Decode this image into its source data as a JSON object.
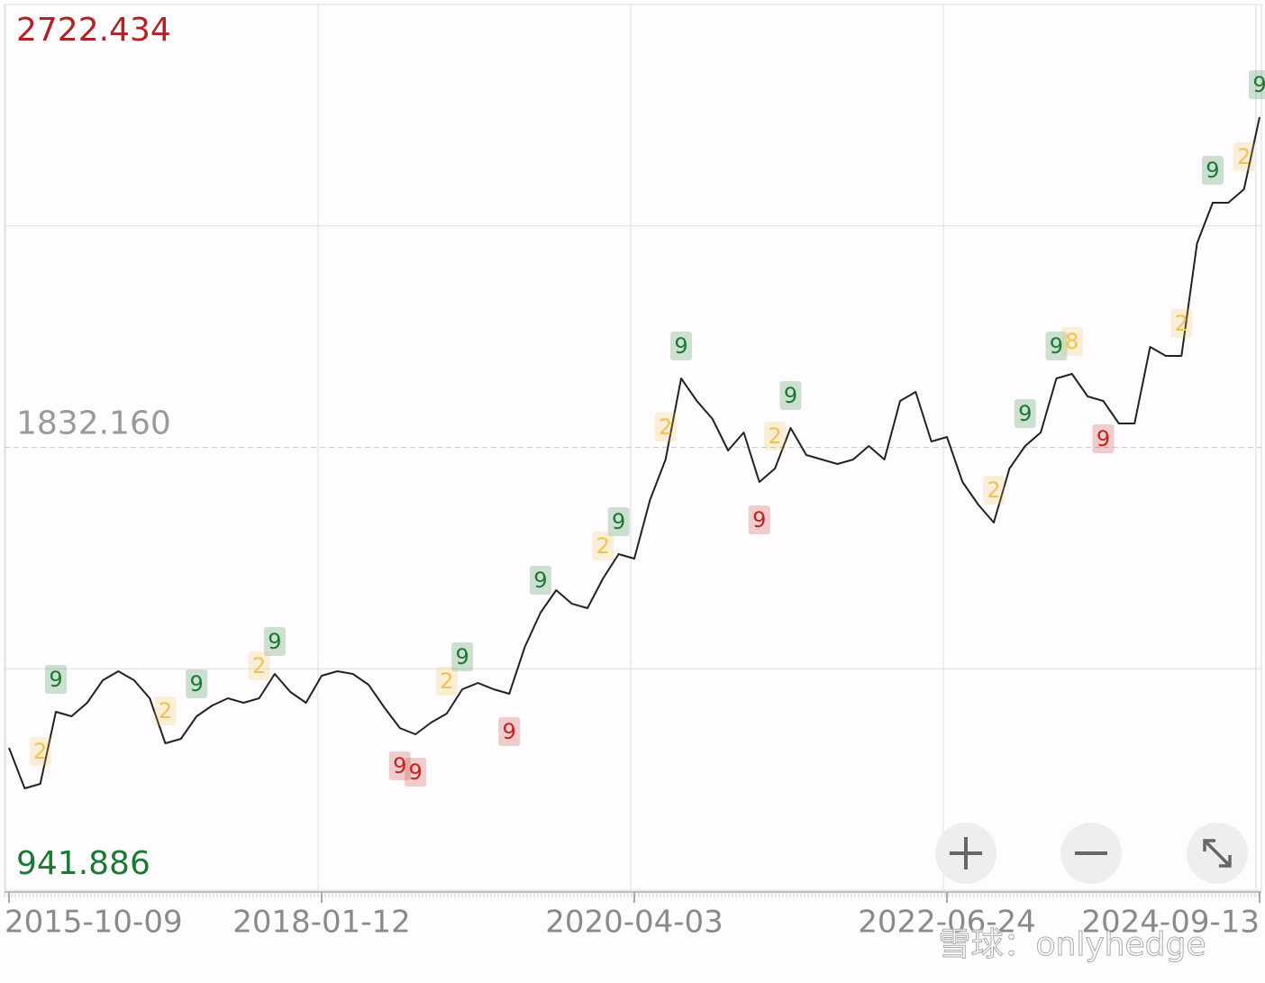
{
  "chart_data": {
    "type": "line",
    "categories": [
      "2015-10-09",
      null,
      null,
      null,
      null,
      null,
      null,
      null,
      null,
      null,
      null,
      null,
      null,
      null,
      null,
      null,
      null,
      null,
      null,
      null,
      "2018-01-12",
      null,
      null,
      null,
      null,
      null,
      null,
      null,
      null,
      null,
      null,
      null,
      null,
      null,
      null,
      null,
      null,
      null,
      null,
      null,
      "2020-04-03",
      null,
      null,
      null,
      null,
      null,
      null,
      null,
      null,
      null,
      null,
      null,
      null,
      null,
      null,
      null,
      null,
      null,
      null,
      null,
      "2022-06-24",
      null,
      null,
      null,
      null,
      null,
      null,
      null,
      null,
      null,
      null,
      null,
      null,
      null,
      null,
      null,
      null,
      null,
      null,
      null,
      "2024-09-13"
    ],
    "series": [
      {
        "color": "#222222",
        "values": [
          1228.1,
          1146.6,
          1155.6,
          1300.5,
          1291.5,
          1318.6,
          1363.9,
          1382.0,
          1363.9,
          1327.7,
          1237.1,
          1246.2,
          1291.5,
          1313.2,
          1327.7,
          1318.6,
          1327.7,
          1376.6,
          1340.4,
          1318.6,
          1373.0,
          1382.0,
          1376.6,
          1354.9,
          1309.6,
          1267.9,
          1255.3,
          1278.8,
          1296.9,
          1345.8,
          1358.5,
          1345.8,
          1336.8,
          1431.0,
          1499.8,
          1545.1,
          1517.9,
          1508.8,
          1568.6,
          1617.5,
          1608.5,
          1726.2,
          1807.7,
          1970.7,
          1925.4,
          1889.2,
          1825.8,
          1862.0,
          1762.4,
          1789.6,
          1871.1,
          1816.8,
          1807.7,
          1798.6,
          1807.7,
          1834.9,
          1807.7,
          1925.4,
          1943.5,
          1843.9,
          1853.0,
          1762.4,
          1717.1,
          1680.9,
          1789.6,
          1834.9,
          1862.0,
          1970.7,
          1979.8,
          1934.5,
          1925.4,
          1880.2,
          1880.2,
          2034.1,
          2016.0,
          2016.0,
          2242.4,
          2323.9,
          2323.9,
          2351.1,
          2496.0
        ]
      }
    ],
    "ylim": [
      941.886,
      2722.434
    ],
    "yticks": [
      941.886,
      {
        "value": 1832.16,
        "label": "1832.160"
      },
      2722.434
    ],
    "ytick_colors": [
      "#1a7a33",
      "#9a9a9a",
      "#b22222"
    ],
    "grid": true,
    "markers": [
      {
        "text": "9",
        "at": 3,
        "color": "#1a7a33"
      },
      {
        "text": "9",
        "at": 12,
        "color": "#1a7a33"
      },
      {
        "text": "9",
        "at": 17,
        "color": "#1a7a33"
      },
      {
        "text": "9",
        "at": 29,
        "color": "#1a7a33"
      },
      {
        "text": "9",
        "at": 34,
        "color": "#1a7a33"
      },
      {
        "text": "9",
        "at": 39,
        "color": "#1a7a33"
      },
      {
        "text": "9",
        "at": 43,
        "color": "#1a7a33"
      },
      {
        "text": "9",
        "at": 50,
        "color": "#1a7a33"
      },
      {
        "text": "9",
        "at": 65,
        "color": "#1a7a33"
      },
      {
        "text": "9",
        "at": 67,
        "color": "#1a7a33"
      },
      {
        "text": "9",
        "at": 77,
        "color": "#1a7a33"
      },
      {
        "text": "9",
        "at": 80,
        "color": "#1a7a33"
      },
      {
        "text": "9",
        "at": 25,
        "color": "#c0261e"
      },
      {
        "text": "9",
        "at": 26,
        "color": "#c0261e"
      },
      {
        "text": "9",
        "at": 32,
        "color": "#c0261e"
      },
      {
        "text": "9",
        "at": 48,
        "color": "#c0261e"
      },
      {
        "text": "9",
        "at": 70,
        "color": "#c0261e"
      },
      {
        "text": "2",
        "at": 2,
        "color": "#f2c14e"
      },
      {
        "text": "2",
        "at": 10,
        "color": "#f2c14e"
      },
      {
        "text": "2",
        "at": 16,
        "color": "#f2c14e"
      },
      {
        "text": "2",
        "at": 28,
        "color": "#f2c14e"
      },
      {
        "text": "2",
        "at": 38,
        "color": "#f2c14e"
      },
      {
        "text": "2",
        "at": 42,
        "color": "#f2c14e"
      },
      {
        "text": "2",
        "at": 49,
        "color": "#f2c14e"
      },
      {
        "text": "2",
        "at": 63,
        "color": "#f2c14e"
      },
      {
        "text": "8",
        "at": 68,
        "color": "#f2c14e"
      },
      {
        "text": "2",
        "at": 75,
        "color": "#f2c14e"
      },
      {
        "text": "2",
        "at": 79,
        "color": "#f2c14e"
      }
    ]
  },
  "watermark": "雪球：onlyhedge"
}
